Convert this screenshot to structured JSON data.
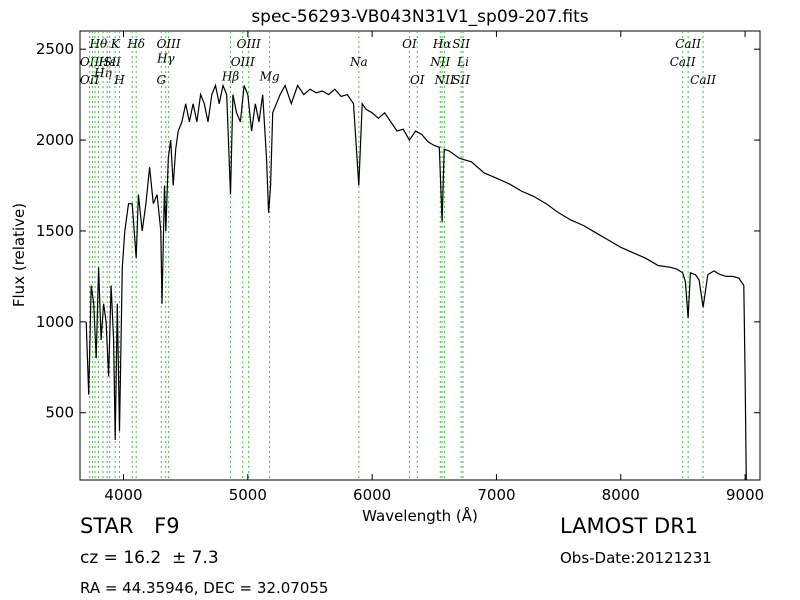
{
  "chart_data": {
    "type": "line",
    "title": "spec-56293-VB043N31V1_sp09-207.fits",
    "xlabel": "Wavelength (Å)",
    "ylabel": "Flux (relative)",
    "xlim": [
      3650,
      9120
    ],
    "ylim": [
      130,
      2600
    ],
    "xticks": [
      4000,
      5000,
      6000,
      7000,
      8000,
      9000
    ],
    "yticks": [
      500,
      1000,
      1500,
      2000,
      2500
    ],
    "grid": false,
    "series": [
      {
        "color": "#000000",
        "x": [
          3700,
          3720,
          3740,
          3760,
          3780,
          3800,
          3820,
          3840,
          3860,
          3880,
          3900,
          3920,
          3933,
          3950,
          3968,
          3990,
          4010,
          4040,
          4070,
          4102,
          4120,
          4150,
          4180,
          4210,
          4240,
          4270,
          4300,
          4310,
          4330,
          4340,
          4360,
          4380,
          4400,
          4420,
          4440,
          4470,
          4500,
          4530,
          4560,
          4590,
          4620,
          4650,
          4680,
          4710,
          4740,
          4770,
          4800,
          4830,
          4861,
          4880,
          4910,
          4940,
          4970,
          5000,
          5030,
          5060,
          5090,
          5120,
          5150,
          5167,
          5183,
          5200,
          5230,
          5260,
          5300,
          5350,
          5400,
          5450,
          5500,
          5550,
          5600,
          5650,
          5700,
          5750,
          5800,
          5850,
          5893,
          5920,
          5950,
          6000,
          6050,
          6100,
          6150,
          6200,
          6250,
          6300,
          6350,
          6400,
          6450,
          6500,
          6540,
          6563,
          6580,
          6620,
          6700,
          6800,
          6900,
          7000,
          7100,
          7200,
          7300,
          7400,
          7500,
          7600,
          7700,
          7800,
          7900,
          8000,
          8100,
          8200,
          8300,
          8400,
          8450,
          8498,
          8520,
          8542,
          8560,
          8600,
          8630,
          8662,
          8700,
          8750,
          8800,
          8850,
          8900,
          8950,
          8990,
          9000,
          9010
        ],
        "values": [
          1000,
          600,
          1200,
          1100,
          800,
          1300,
          900,
          1100,
          1000,
          700,
          1200,
          900,
          350,
          1100,
          400,
          1300,
          1500,
          1650,
          1650,
          1350,
          1700,
          1500,
          1650,
          1850,
          1650,
          1700,
          1500,
          1100,
          1750,
          1500,
          1900,
          2000,
          1750,
          1950,
          2050,
          2100,
          2200,
          2100,
          2200,
          2100,
          2250,
          2200,
          2100,
          2250,
          2300,
          2200,
          2300,
          2250,
          1700,
          2250,
          2150,
          2100,
          2300,
          2250,
          2050,
          2200,
          2100,
          2250,
          1900,
          1600,
          1750,
          2150,
          2200,
          2250,
          2300,
          2200,
          2300,
          2250,
          2280,
          2260,
          2270,
          2250,
          2280,
          2240,
          2250,
          2200,
          1750,
          2200,
          2170,
          2150,
          2120,
          2150,
          2100,
          2050,
          2060,
          2000,
          2050,
          2030,
          1990,
          1970,
          1960,
          1550,
          1950,
          1940,
          1900,
          1880,
          1820,
          1790,
          1760,
          1720,
          1690,
          1650,
          1600,
          1560,
          1530,
          1490,
          1450,
          1410,
          1380,
          1350,
          1310,
          1300,
          1290,
          1270,
          1220,
          1020,
          1270,
          1260,
          1230,
          1080,
          1260,
          1280,
          1260,
          1250,
          1250,
          1240,
          1200,
          700,
          130
        ]
      }
    ],
    "line_markers": [
      {
        "x": 3727,
        "labels": [
          {
            "text": "OII",
            "row": 1
          },
          {
            "text": "OII",
            "row": 2
          }
        ]
      },
      {
        "x": 3750,
        "labels": []
      },
      {
        "x": 3771,
        "labels": []
      },
      {
        "x": 3798,
        "labels": [
          {
            "text": "Hθ",
            "row": 0
          }
        ]
      },
      {
        "x": 3835,
        "labels": [
          {
            "text": "Hη",
            "row": 1.6
          }
        ]
      },
      {
        "x": 3869,
        "labels": [
          {
            "text": "Hε",
            "row": 1
          }
        ]
      },
      {
        "x": 3889,
        "labels": [
          {
            "text": "ISII",
            "row": 1
          }
        ]
      },
      {
        "x": 3933,
        "labels": [
          {
            "text": "K",
            "row": 0
          }
        ]
      },
      {
        "x": 3968,
        "labels": [
          {
            "text": "H",
            "row": 2
          }
        ]
      },
      {
        "x": 4070,
        "labels": []
      },
      {
        "x": 4102,
        "labels": [
          {
            "text": "Hδ",
            "row": 0
          }
        ]
      },
      {
        "x": 4304,
        "labels": [
          {
            "text": "G",
            "row": 2
          }
        ]
      },
      {
        "x": 4340,
        "labels": [
          {
            "text": "Hγ",
            "row": 0.8
          }
        ]
      },
      {
        "x": 4363,
        "labels": [
          {
            "text": "OIII",
            "row": 0
          }
        ]
      },
      {
        "x": 4861,
        "labels": [
          {
            "text": "Hβ",
            "row": 1.8
          }
        ]
      },
      {
        "x": 4959,
        "labels": [
          {
            "text": "OIII",
            "row": 1
          }
        ]
      },
      {
        "x": 5007,
        "labels": [
          {
            "text": "OIII",
            "row": 0
          }
        ]
      },
      {
        "x": 5175,
        "labels": [
          {
            "text": "Mg",
            "row": 1.8
          }
        ]
      },
      {
        "x": 5893,
        "labels": [
          {
            "text": "Na",
            "row": 1
          }
        ]
      },
      {
        "x": 6300,
        "labels": [
          {
            "text": "OI",
            "row": 0
          }
        ]
      },
      {
        "x": 6363,
        "labels": [
          {
            "text": "OI",
            "row": 2
          }
        ]
      },
      {
        "x": 6548,
        "labels": [
          {
            "text": "NII",
            "row": 1
          }
        ]
      },
      {
        "x": 6563,
        "labels": [
          {
            "text": "Hα",
            "row": 0
          }
        ]
      },
      {
        "x": 6583,
        "labels": [
          {
            "text": "NII",
            "row": 2
          }
        ]
      },
      {
        "x": 6716,
        "labels": [
          {
            "text": "SII",
            "row": 0
          },
          {
            "text": "SII",
            "row": 2
          }
        ]
      },
      {
        "x": 6731,
        "labels": [
          {
            "text": "Li",
            "row": 1
          }
        ]
      },
      {
        "x": 8498,
        "labels": [
          {
            "text": "CaII",
            "row": 1
          }
        ]
      },
      {
        "x": 8542,
        "labels": [
          {
            "text": "CaII",
            "row": 0
          }
        ]
      },
      {
        "x": 8662,
        "labels": [
          {
            "text": "CaII",
            "row": 2
          }
        ]
      }
    ]
  },
  "info": {
    "object_class": "STAR",
    "subclass": "F9",
    "redshift": "cz = 16.2  ± 7.3",
    "coords": "RA = 44.35946, DEC = 32.07055",
    "survey": "LAMOST DR1",
    "obs_date": "Obs-Date:20121231"
  }
}
